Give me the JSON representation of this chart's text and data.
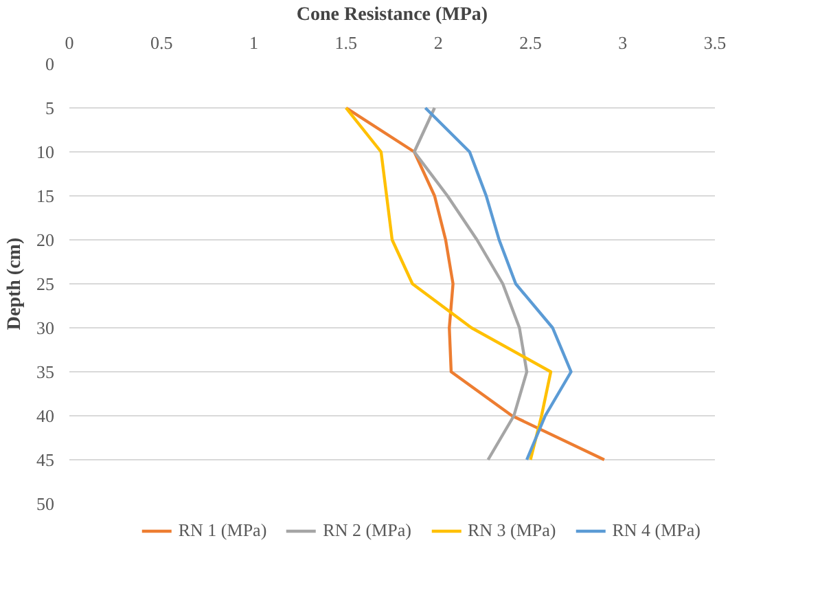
{
  "chart_data": {
    "type": "line",
    "xlabel": "Cone Resistance (MPa)",
    "ylabel": "Depth (cm)",
    "xlim": [
      0,
      3.5
    ],
    "xticks": [
      0,
      0.5,
      1,
      1.5,
      2,
      2.5,
      3,
      3.5
    ],
    "ylim": [
      50,
      0
    ],
    "yticks": [
      0,
      5,
      10,
      15,
      20,
      25,
      30,
      35,
      40,
      45,
      50
    ],
    "grid": "y",
    "legend": "bottom",
    "marker": "none",
    "line_style": "solid",
    "series": [
      {
        "name": "RN 1 (MPa)",
        "color": "#ed7d31",
        "x": [
          1.5,
          1.87,
          1.98,
          2.04,
          2.08,
          2.06,
          2.07,
          2.4,
          2.9
        ],
        "values": [
          5,
          10,
          15,
          20,
          25,
          30,
          35,
          40,
          45
        ]
      },
      {
        "name": "RN 2 (MPa)",
        "color": "#a5a5a5",
        "x": [
          1.98,
          1.87,
          2.05,
          2.21,
          2.35,
          2.44,
          2.48,
          2.41,
          2.27
        ],
        "values": [
          5,
          10,
          15,
          20,
          25,
          30,
          35,
          40,
          45
        ]
      },
      {
        "name": "RN 3 (MPa)",
        "color": "#ffc000",
        "x": [
          1.5,
          1.69,
          1.72,
          1.75,
          1.86,
          2.18,
          2.61,
          2.56,
          2.5
        ],
        "values": [
          5,
          10,
          15,
          20,
          25,
          30,
          35,
          40,
          45
        ]
      },
      {
        "name": "RN 4 (MPa)",
        "color": "#5b9bd5",
        "x": [
          1.93,
          2.17,
          2.26,
          2.33,
          2.42,
          2.62,
          2.72,
          2.58,
          2.48
        ],
        "values": [
          5,
          10,
          15,
          20,
          25,
          30,
          35,
          40,
          45
        ]
      }
    ]
  }
}
